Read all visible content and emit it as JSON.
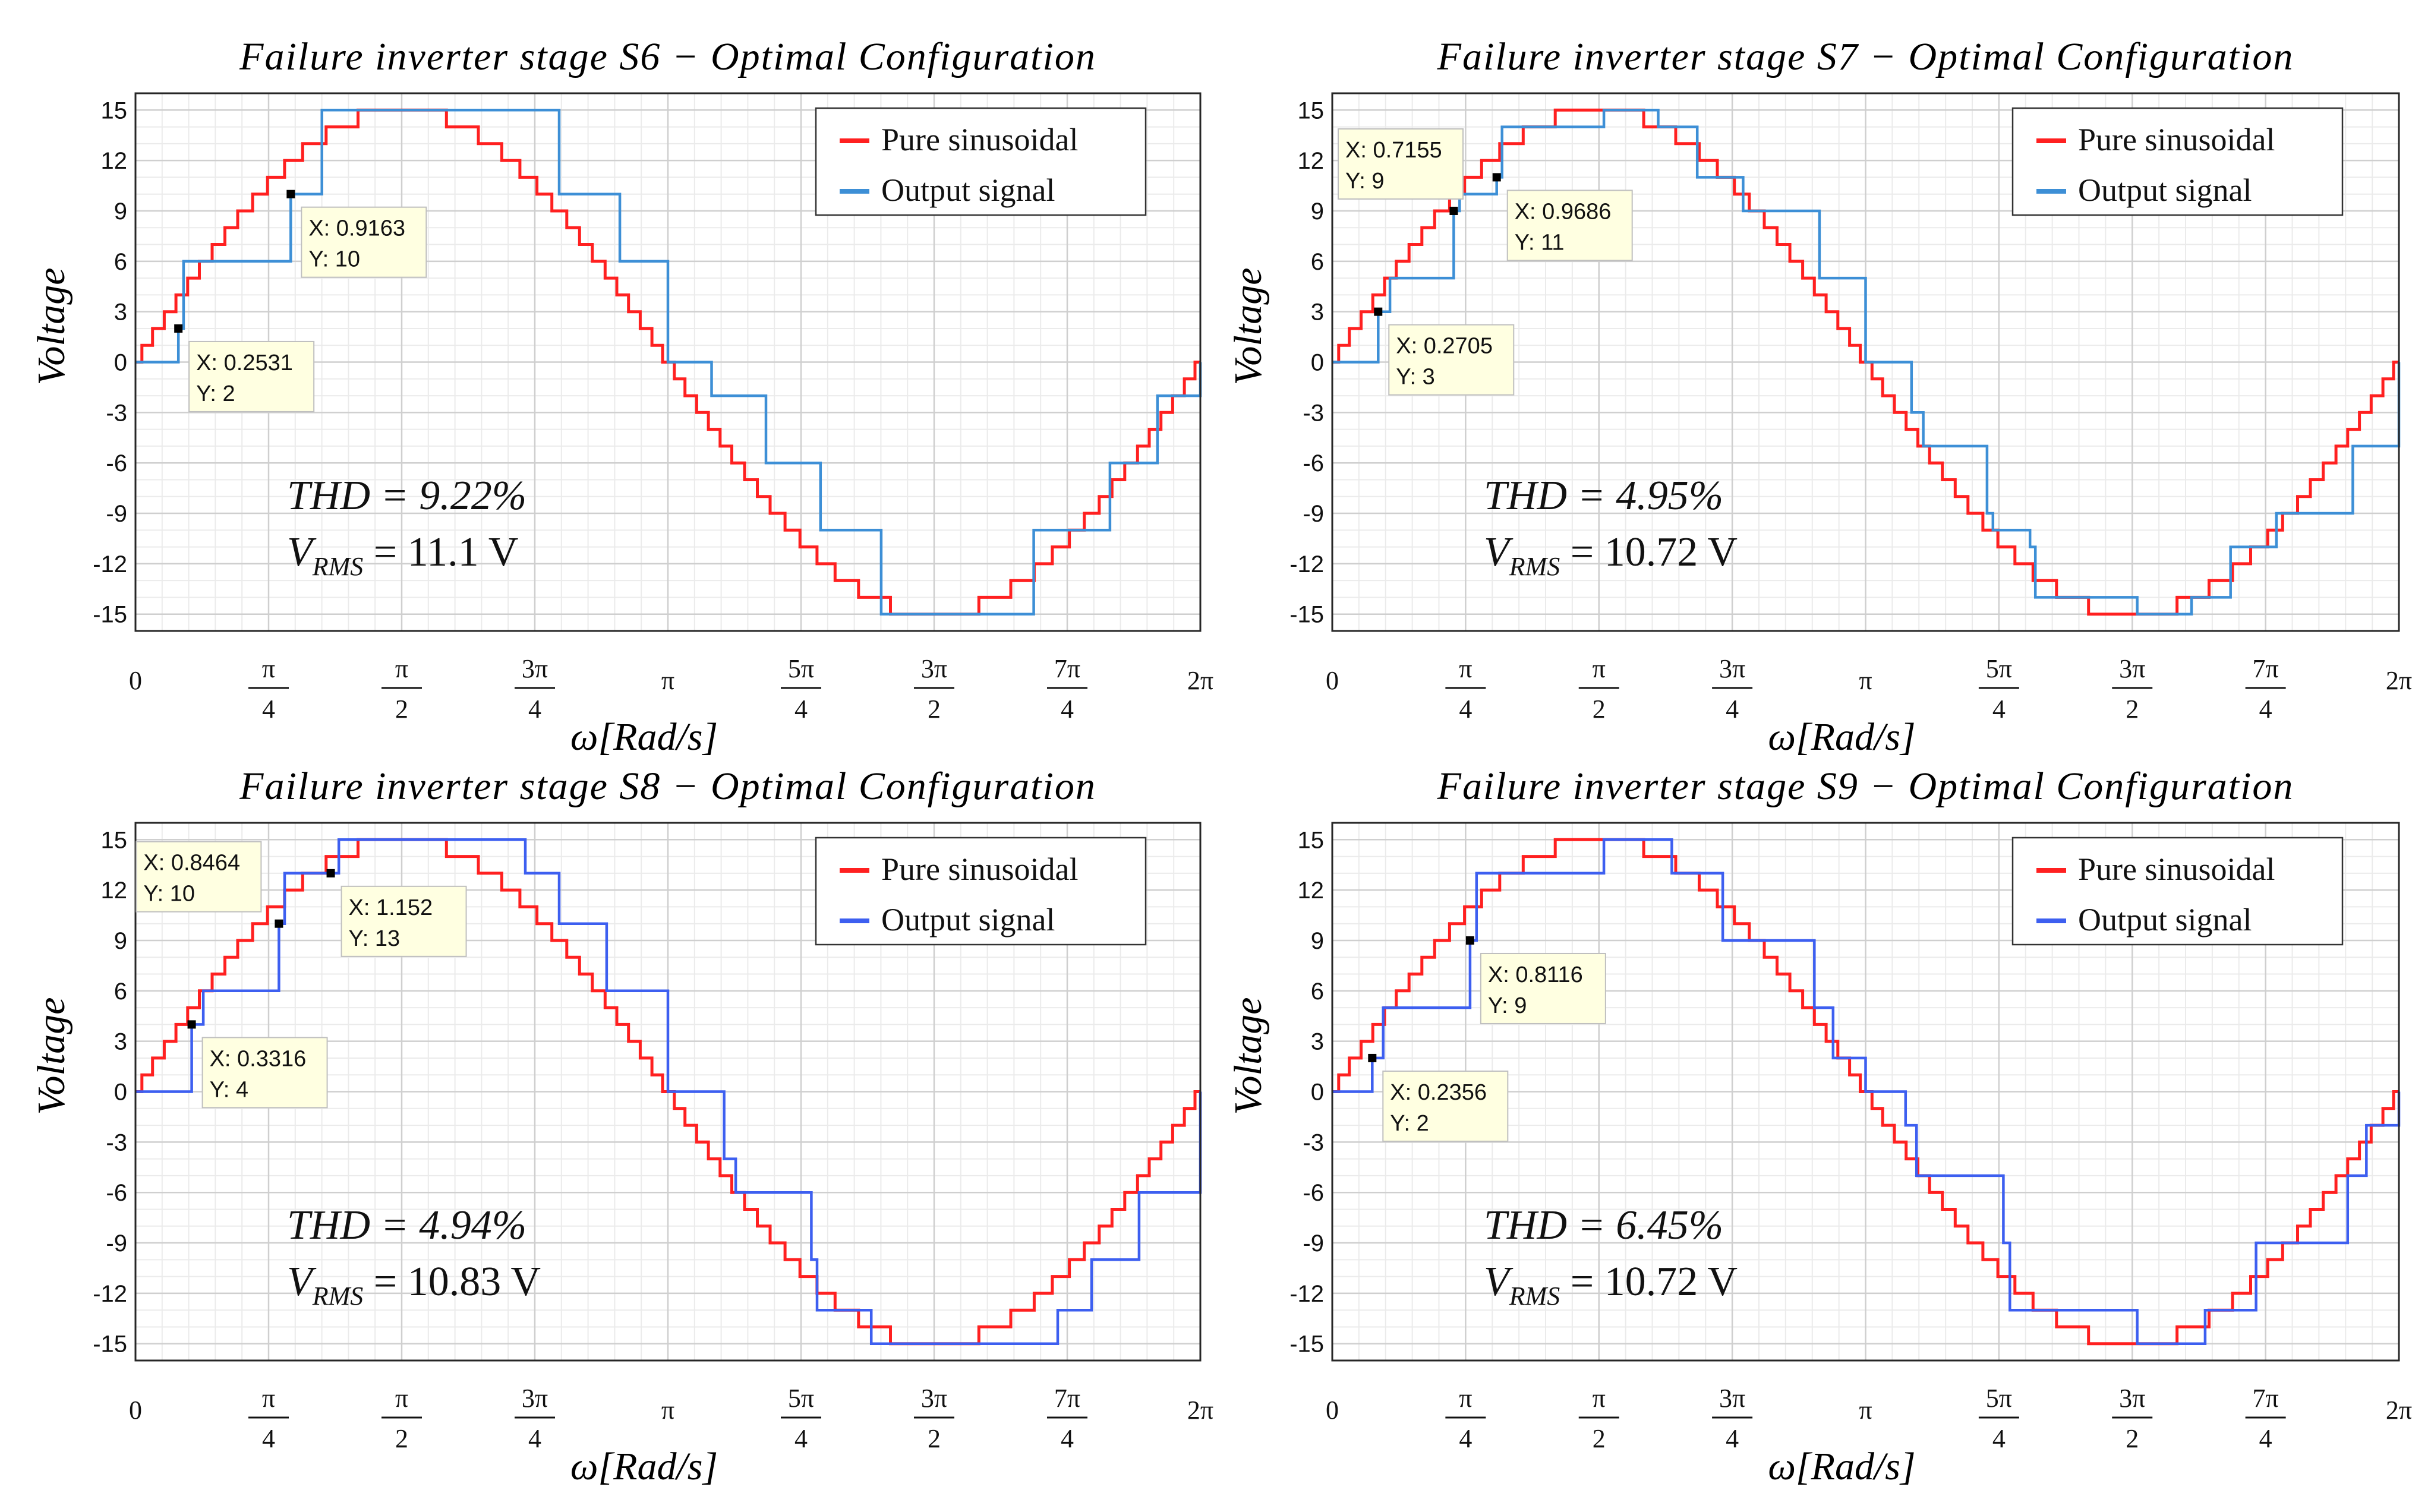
{
  "chart_data": [
    {
      "type": "line",
      "title": "Failure inverter stage S6 − Optimal Configuration",
      "xlabel": "ω[Rad/s]",
      "ylabel": "Voltage",
      "xlim": [
        0,
        6.2832
      ],
      "ylim": [
        -16,
        16
      ],
      "yticks": [
        "15",
        "12",
        "9",
        "6",
        "3",
        "0",
        "-3",
        "-6",
        "-9",
        "-12",
        "-15"
      ],
      "xticks": [
        {
          "num": "0",
          "den": ""
        },
        {
          "num": "π",
          "den": "4"
        },
        {
          "num": "π",
          "den": "2"
        },
        {
          "num": "3π",
          "den": "4"
        },
        {
          "num": "π",
          "den": ""
        },
        {
          "num": "5π",
          "den": "4"
        },
        {
          "num": "3π",
          "den": "2"
        },
        {
          "num": "7π",
          "den": "4"
        },
        {
          "num": "2π",
          "den": ""
        }
      ],
      "grid": true,
      "legend": {
        "position": "top-right",
        "entries": [
          "Pure sinusoidal",
          "Output signal"
        ]
      },
      "series": [
        {
          "name": "Pure sinusoidal",
          "color": "#ff2020",
          "amplitude": 15,
          "kind": "staircase-sine"
        },
        {
          "name": "Output signal",
          "color": "#3d8fd6",
          "kind": "step",
          "levels_x": [
            0,
            0.2531,
            0.2838,
            0.9163,
            1.1,
            2.2253,
            2.5,
            2.8578,
            3.1416,
            3.3994,
            3.72,
            4.0419,
            4.4,
            5.0,
            5.3,
            5.75,
            6.03,
            6.2832
          ],
          "levels_y": [
            0,
            2,
            6,
            10,
            15,
            15,
            10,
            6,
            0,
            -2,
            -6,
            -10,
            -15,
            -15,
            -10,
            -6,
            -2,
            0
          ]
        }
      ],
      "datatips": [
        {
          "x": 0.2531,
          "y": 2,
          "xtext": "X: 0.2531",
          "ytext": "Y: 2",
          "box": "below-right"
        },
        {
          "x": 0.9163,
          "y": 10,
          "xtext": "X: 0.9163",
          "ytext": "Y: 10",
          "box": "below-right"
        }
      ],
      "thd_label": "THD = 9.22%",
      "vrms_label": "V",
      "vrms_sub": "RMS",
      "vrms_value": " = 11.1 V"
    },
    {
      "type": "line",
      "title": "Failure inverter stage S7 − Optimal Configuration",
      "xlabel": "ω[Rad/s]",
      "ylabel": "Voltage",
      "xlim": [
        0,
        6.2832
      ],
      "ylim": [
        -16,
        16
      ],
      "yticks": [
        "15",
        "12",
        "9",
        "6",
        "3",
        "0",
        "-3",
        "-6",
        "-9",
        "-12",
        "-15"
      ],
      "xticks": [
        {
          "num": "0",
          "den": ""
        },
        {
          "num": "π",
          "den": "4"
        },
        {
          "num": "π",
          "den": "2"
        },
        {
          "num": "3π",
          "den": "4"
        },
        {
          "num": "π",
          "den": ""
        },
        {
          "num": "5π",
          "den": "4"
        },
        {
          "num": "3π",
          "den": "2"
        },
        {
          "num": "7π",
          "den": "4"
        },
        {
          "num": "2π",
          "den": ""
        }
      ],
      "grid": true,
      "legend": {
        "position": "top-right",
        "entries": [
          "Pure sinusoidal",
          "Output signal"
        ]
      },
      "series": [
        {
          "name": "Pure sinusoidal",
          "color": "#ff2020",
          "amplitude": 15,
          "kind": "staircase-sine"
        },
        {
          "name": "Output signal",
          "color": "#3d8fd6",
          "kind": "step",
          "levels_x": [
            0,
            0.2705,
            0.34,
            0.7155,
            0.75,
            0.9686,
            1.0,
            1.22,
            1.6,
            1.92,
            2.15,
            2.42,
            2.87,
            3.1416
          ],
          "levels_y": [
            0,
            3,
            5,
            9,
            10,
            11,
            14,
            14,
            15,
            14,
            11,
            9,
            5,
            0
          ]
        }
      ],
      "datatips": [
        {
          "x": 0.2705,
          "y": 3,
          "xtext": "X: 0.2705",
          "ytext": "Y: 3",
          "box": "below-right"
        },
        {
          "x": 0.7155,
          "y": 9,
          "xtext": "X: 0.7155",
          "ytext": "Y: 9",
          "box": "above-left"
        },
        {
          "x": 0.9686,
          "y": 11,
          "xtext": "X: 0.9686",
          "ytext": "Y: 11",
          "box": "below-right"
        }
      ],
      "thd_label": "THD = 4.95%",
      "vrms_label": "V",
      "vrms_sub": "RMS",
      "vrms_value": " = 10.72 V"
    },
    {
      "type": "line",
      "title": "Failure inverter stage S8 − Optimal Configuration",
      "xlabel": "ω[Rad/s]",
      "ylabel": "Voltage",
      "xlim": [
        0,
        6.2832
      ],
      "ylim": [
        -16,
        16
      ],
      "yticks": [
        "15",
        "12",
        "9",
        "6",
        "3",
        "0",
        "-3",
        "-6",
        "-9",
        "-12",
        "-15"
      ],
      "xticks": [
        {
          "num": "0",
          "den": ""
        },
        {
          "num": "π",
          "den": "4"
        },
        {
          "num": "π",
          "den": "2"
        },
        {
          "num": "3π",
          "den": "4"
        },
        {
          "num": "π",
          "den": ""
        },
        {
          "num": "5π",
          "den": "4"
        },
        {
          "num": "3π",
          "den": "2"
        },
        {
          "num": "7π",
          "den": "4"
        },
        {
          "num": "2π",
          "den": ""
        }
      ],
      "grid": true,
      "legend": {
        "position": "top-right",
        "entries": [
          "Pure sinusoidal",
          "Output signal"
        ]
      },
      "series": [
        {
          "name": "Pure sinusoidal",
          "color": "#ff2020",
          "amplitude": 15,
          "kind": "staircase-sine"
        },
        {
          "name": "Output signal",
          "color": "#3d5ff0",
          "kind": "step",
          "levels_x": [
            0,
            0.3316,
            0.4,
            0.8464,
            0.88,
            1.152,
            1.2,
            2.3,
            2.5,
            2.78,
            3.1416
          ],
          "levels_y": [
            0,
            4,
            6,
            10,
            13,
            13,
            15,
            13,
            10,
            6,
            0
          ]
        }
      ],
      "datatips": [
        {
          "x": 0.3316,
          "y": 4,
          "xtext": "X: 0.3316",
          "ytext": "Y: 4",
          "box": "below-right"
        },
        {
          "x": 0.8464,
          "y": 10,
          "xtext": "X: 0.8464",
          "ytext": "Y: 10",
          "box": "above-left"
        },
        {
          "x": 1.152,
          "y": 13,
          "xtext": "X: 1.152",
          "ytext": "Y: 13",
          "box": "below-right"
        }
      ],
      "thd_label": "THD = 4.94%",
      "vrms_label": "V",
      "vrms_sub": "RMS",
      "vrms_value": " = 10.83 V"
    },
    {
      "type": "line",
      "title": "Failure inverter stage S9 − Optimal Configuration",
      "xlabel": "ω[Rad/s]",
      "ylabel": "Voltage",
      "xlim": [
        0,
        6.2832
      ],
      "ylim": [
        -16,
        16
      ],
      "yticks": [
        "15",
        "12",
        "9",
        "6",
        "3",
        "0",
        "-3",
        "-6",
        "-9",
        "-12",
        "-15"
      ],
      "xticks": [
        {
          "num": "0",
          "den": ""
        },
        {
          "num": "π",
          "den": "4"
        },
        {
          "num": "π",
          "den": "2"
        },
        {
          "num": "3π",
          "den": "4"
        },
        {
          "num": "π",
          "den": ""
        },
        {
          "num": "5π",
          "den": "4"
        },
        {
          "num": "3π",
          "den": "2"
        },
        {
          "num": "7π",
          "den": "4"
        },
        {
          "num": "2π",
          "den": ""
        }
      ],
      "grid": true,
      "legend": {
        "position": "top-right",
        "entries": [
          "Pure sinusoidal",
          "Output signal"
        ]
      },
      "series": [
        {
          "name": "Pure sinusoidal",
          "color": "#ff2020",
          "amplitude": 15,
          "kind": "staircase-sine"
        },
        {
          "name": "Output signal",
          "color": "#3d5ff0",
          "kind": "step",
          "levels_x": [
            0,
            0.2356,
            0.3,
            0.8116,
            0.85,
            1.1,
            1.6,
            2.0,
            2.3,
            2.84,
            2.95,
            3.1416
          ],
          "levels_y": [
            0,
            2,
            5,
            9,
            13,
            13,
            15,
            13,
            9,
            5,
            2,
            0
          ]
        }
      ],
      "datatips": [
        {
          "x": 0.2356,
          "y": 2,
          "xtext": "X: 0.2356",
          "ytext": "Y: 2",
          "box": "below-right"
        },
        {
          "x": 0.8116,
          "y": 9,
          "xtext": "X: 0.8116",
          "ytext": "Y: 9",
          "box": "below-right"
        }
      ],
      "thd_label": "THD = 6.45%",
      "vrms_label": "V",
      "vrms_sub": "RMS",
      "vrms_value": " = 10.72 V"
    }
  ]
}
